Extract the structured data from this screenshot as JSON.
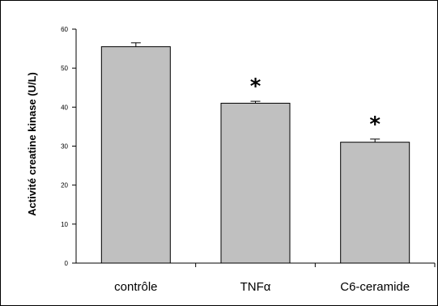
{
  "chart_data": {
    "type": "bar",
    "title": "",
    "xlabel": "",
    "ylabel": "Activité creatine kinase (U/L)",
    "categories": [
      "contrôle",
      "TNFα",
      "C6-ceramide"
    ],
    "values": [
      55.5,
      41,
      31
    ],
    "errors": [
      1,
      0.5,
      0.8
    ],
    "significance": [
      "",
      "*",
      "*"
    ],
    "ylim": [
      0,
      60
    ],
    "yticks": [
      "0",
      "10",
      "20",
      "30",
      "40",
      "50",
      "60"
    ],
    "grid": false,
    "legend": "none",
    "colors": {
      "bar_fill": "#c0c0c0",
      "bar_stroke": "#000000"
    }
  }
}
